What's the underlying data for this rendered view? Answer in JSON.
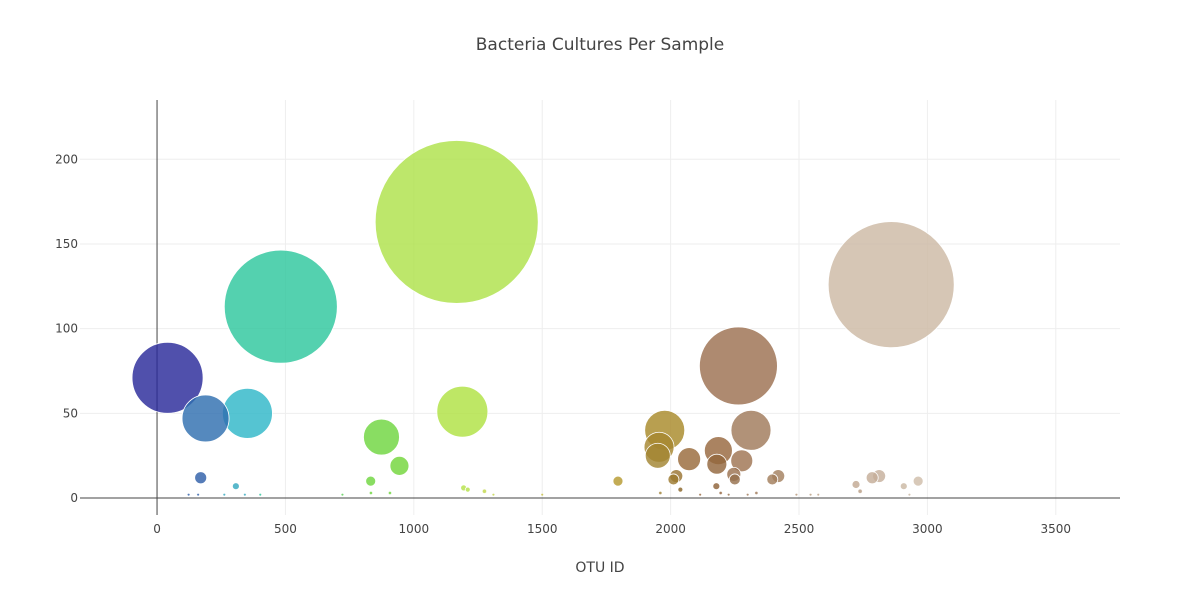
{
  "chart_data": {
    "type": "scatter",
    "title": "Bacteria Cultures Per Sample",
    "xlabel": "OTU ID",
    "ylabel": "",
    "xlim": [
      -300,
      3750
    ],
    "ylim": [
      -10,
      235
    ],
    "x_ticks": [
      0,
      500,
      1000,
      1500,
      2000,
      2500,
      3000,
      3500
    ],
    "y_ticks": [
      0,
      50,
      100,
      150,
      200
    ],
    "x_tick_labels": [
      "0",
      "500",
      "1000",
      "1500",
      "2000",
      "2500",
      "3000",
      "3500"
    ],
    "y_tick_labels": [
      "0",
      "50",
      "100",
      "150",
      "200"
    ],
    "grid": true,
    "marker_size_encodes": "sample value",
    "colorscale": "Earth",
    "points": [
      {
        "x": 41,
        "y": 71,
        "size": 71,
        "color": "#2a2a9a"
      },
      {
        "x": 189,
        "y": 47,
        "size": 47,
        "color": "#2f6fb0"
      },
      {
        "x": 352,
        "y": 50,
        "size": 50,
        "color": "#2fb7c8"
      },
      {
        "x": 482,
        "y": 113,
        "size": 113,
        "color": "#2ec79e"
      },
      {
        "x": 1167,
        "y": 163,
        "size": 163,
        "color": "#aee24a"
      },
      {
        "x": 1189,
        "y": 51,
        "size": 51,
        "color": "#b0e243"
      },
      {
        "x": 874,
        "y": 36,
        "size": 36,
        "color": "#6fd53f"
      },
      {
        "x": 944,
        "y": 19,
        "size": 19,
        "color": "#73d63b"
      },
      {
        "x": 832,
        "y": 10,
        "size": 10,
        "color": "#6fd53f"
      },
      {
        "x": 170,
        "y": 12,
        "size": 12,
        "color": "#2f5fa8"
      },
      {
        "x": 307,
        "y": 7,
        "size": 7,
        "color": "#35a8c0"
      },
      {
        "x": 1795,
        "y": 10,
        "size": 10,
        "color": "#b69a30"
      },
      {
        "x": 1977,
        "y": 40,
        "size": 40,
        "color": "#a88a2a"
      },
      {
        "x": 1955,
        "y": 30,
        "size": 30,
        "color": "#a68630"
      },
      {
        "x": 1950,
        "y": 25,
        "size": 25,
        "color": "#a28532"
      },
      {
        "x": 2011,
        "y": 11,
        "size": 11,
        "color": "#9c7a2f"
      },
      {
        "x": 2022,
        "y": 13,
        "size": 13,
        "color": "#9a7432"
      },
      {
        "x": 2038,
        "y": 5,
        "size": 5,
        "color": "#8a6528"
      },
      {
        "x": 2072,
        "y": 23,
        "size": 23,
        "color": "#996a3a"
      },
      {
        "x": 2186,
        "y": 28,
        "size": 28,
        "color": "#97683e"
      },
      {
        "x": 2180,
        "y": 20,
        "size": 20,
        "color": "#93673d"
      },
      {
        "x": 2178,
        "y": 7,
        "size": 7,
        "color": "#8f6339"
      },
      {
        "x": 2264,
        "y": 78,
        "size": 78,
        "color": "#9c7050"
      },
      {
        "x": 2313,
        "y": 40,
        "size": 40,
        "color": "#a07a5a"
      },
      {
        "x": 2277,
        "y": 22,
        "size": 22,
        "color": "#9f7452"
      },
      {
        "x": 2246,
        "y": 14,
        "size": 14,
        "color": "#9b714f"
      },
      {
        "x": 2250,
        "y": 11,
        "size": 11,
        "color": "#96704d"
      },
      {
        "x": 2419,
        "y": 13,
        "size": 13,
        "color": "#a4805f"
      },
      {
        "x": 2396,
        "y": 11,
        "size": 11,
        "color": "#a27e5c"
      },
      {
        "x": 2859,
        "y": 126,
        "size": 126,
        "color": "#cdb9a5"
      },
      {
        "x": 2812,
        "y": 13,
        "size": 13,
        "color": "#c6b09c"
      },
      {
        "x": 2785,
        "y": 12,
        "size": 12,
        "color": "#c4ad99"
      },
      {
        "x": 2722,
        "y": 8,
        "size": 8,
        "color": "#c2a892"
      },
      {
        "x": 2964,
        "y": 10,
        "size": 10,
        "color": "#cfbdaa"
      },
      {
        "x": 2908,
        "y": 7,
        "size": 7,
        "color": "#cbb8a4"
      },
      {
        "x": 2738,
        "y": 4,
        "size": 4,
        "color": "#b89e85"
      },
      {
        "x": 1194,
        "y": 6,
        "size": 6,
        "color": "#b6e24a"
      },
      {
        "x": 1210,
        "y": 5,
        "size": 5,
        "color": "#b6e24a"
      },
      {
        "x": 1275,
        "y": 4,
        "size": 4,
        "color": "#c2d84c"
      },
      {
        "x": 907,
        "y": 3,
        "size": 3,
        "color": "#6fd53f"
      },
      {
        "x": 833,
        "y": 3,
        "size": 3,
        "color": "#6fd53f"
      },
      {
        "x": 1960,
        "y": 3,
        "size": 3,
        "color": "#a08238"
      },
      {
        "x": 2195,
        "y": 3,
        "size": 3,
        "color": "#946540"
      },
      {
        "x": 2334,
        "y": 3,
        "size": 3,
        "color": "#a07a5a"
      },
      {
        "x": 123,
        "y": 2,
        "size": 2,
        "color": "#2f5fa8"
      },
      {
        "x": 160,
        "y": 2,
        "size": 2,
        "color": "#2f5fa8"
      },
      {
        "x": 262,
        "y": 2,
        "size": 2,
        "color": "#35a8c0"
      },
      {
        "x": 342,
        "y": 2,
        "size": 2,
        "color": "#35a8c0"
      },
      {
        "x": 402,
        "y": 2,
        "size": 2,
        "color": "#2ec79e"
      },
      {
        "x": 722,
        "y": 2,
        "size": 2,
        "color": "#5bcf58"
      },
      {
        "x": 1310,
        "y": 2,
        "size": 2,
        "color": "#c4d64c"
      },
      {
        "x": 1500,
        "y": 2,
        "size": 2,
        "color": "#c6c046"
      },
      {
        "x": 2115,
        "y": 2,
        "size": 2,
        "color": "#97683e"
      },
      {
        "x": 2226,
        "y": 2,
        "size": 2,
        "color": "#96704d"
      },
      {
        "x": 2300,
        "y": 2,
        "size": 2,
        "color": "#a07a5a"
      },
      {
        "x": 2490,
        "y": 2,
        "size": 2,
        "color": "#b6967a"
      },
      {
        "x": 2545,
        "y": 2,
        "size": 2,
        "color": "#baa084"
      },
      {
        "x": 2575,
        "y": 2,
        "size": 2,
        "color": "#bea48a"
      },
      {
        "x": 2930,
        "y": 2,
        "size": 2,
        "color": "#cbb8a4"
      }
    ]
  }
}
